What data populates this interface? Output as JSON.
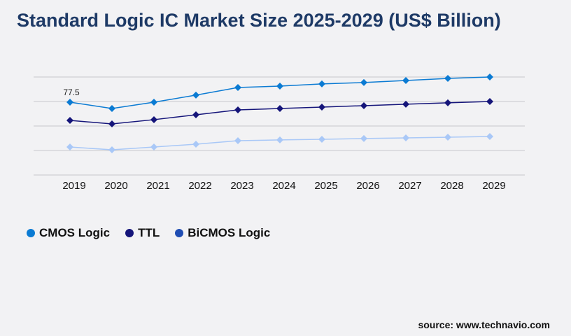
{
  "chart_data": {
    "type": "line",
    "title": "Standard Logic IC Market Size 2025-2029 (US$ Billion)",
    "categories": [
      "2019",
      "2020",
      "2021",
      "2022",
      "2023",
      "2024",
      "2025",
      "2026",
      "2027",
      "2028",
      "2029"
    ],
    "ylim": [
      0,
      104.3
    ],
    "grid": true,
    "legend_placement": "bottom-left",
    "annotations": [
      {
        "category": "2019",
        "series": "CMOS Logic",
        "text": "77.5"
      }
    ],
    "series": [
      {
        "name": "CMOS Logic",
        "color": "#0b7bd3",
        "legend_color": "#0b7bd3",
        "values": [
          77.5,
          70.8,
          77.5,
          85.0,
          93.1,
          94.6,
          96.9,
          98.4,
          100.6,
          102.8,
          104.3
        ]
      },
      {
        "name": "TTL",
        "color": "#15157a",
        "legend_color": "#15157a",
        "values": [
          58.1,
          54.4,
          58.9,
          64.1,
          69.3,
          70.8,
          72.3,
          73.8,
          75.3,
          76.8,
          78.2
        ]
      },
      {
        "name": "BiCMOS Logic",
        "color": "#a9c8f7",
        "legend_color": "#1f4db3",
        "values": [
          29.8,
          26.8,
          29.8,
          32.8,
          36.5,
          37.3,
          38.0,
          38.8,
          39.5,
          40.2,
          41.0
        ]
      }
    ]
  },
  "source": "source: www.technavio.com"
}
